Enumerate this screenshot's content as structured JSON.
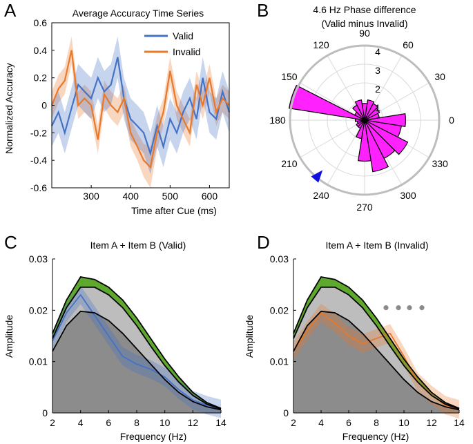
{
  "chart_data": [
    {
      "panel": "A",
      "type": "line",
      "title": "Average Accuracy Time Series",
      "xlabel": "Time after Cue (ms)",
      "ylabel": "Normalized Accuracy",
      "xlim": [
        200,
        650
      ],
      "ylim": [
        -0.6,
        0.6
      ],
      "xticks": [
        300,
        400,
        500,
        600
      ],
      "yticks": [
        -0.6,
        -0.4,
        -0.2,
        0,
        0.2,
        0.4,
        0.6
      ],
      "ytick_labels": [
        "-0.6",
        "-0.4",
        "-0.2",
        "0",
        "0.2",
        "0.4",
        "0.6"
      ],
      "legend_position": "top-right",
      "x": [
        200,
        217,
        233,
        250,
        267,
        283,
        300,
        317,
        333,
        350,
        367,
        383,
        400,
        417,
        433,
        450,
        467,
        483,
        500,
        517,
        533,
        550,
        567,
        583,
        600,
        617,
        633,
        650
      ],
      "series": [
        {
          "name": "Valid",
          "color": "#4472c4",
          "values": [
            -0.15,
            -0.05,
            -0.2,
            -0.02,
            0.15,
            0.1,
            0.05,
            0.2,
            0.1,
            0.15,
            0.35,
            0.05,
            -0.1,
            -0.15,
            -0.2,
            -0.35,
            -0.15,
            -0.3,
            -0.1,
            -0.2,
            -0.05,
            0.05,
            -0.1,
            0.2,
            -0.05,
            -0.1,
            0.1,
            -0.05
          ],
          "band": [
            0.15,
            0.15,
            0.15,
            0.15,
            0.15,
            0.15,
            0.15,
            0.15,
            0.15,
            0.15,
            0.15,
            0.15,
            0.15,
            0.15,
            0.15,
            0.15,
            0.15,
            0.15,
            0.15,
            0.15,
            0.15,
            0.15,
            0.15,
            0.15,
            0.15,
            0.15,
            0.15,
            0.15
          ]
        },
        {
          "name": "Invalid",
          "color": "#e8782a",
          "values": [
            0,
            0.12,
            0.18,
            0.4,
            0,
            0.05,
            0,
            -0.25,
            0.08,
            0,
            -0.05,
            0.05,
            -0.2,
            -0.3,
            -0.4,
            -0.45,
            -0.2,
            -0.05,
            0.25,
            0,
            -0.1,
            -0.2,
            0.15,
            0,
            0.2,
            -0.05,
            0.05,
            0
          ],
          "band": [
            0.1,
            0.1,
            0.1,
            0.1,
            0.1,
            0.1,
            0.1,
            0.1,
            0.1,
            0.1,
            0.1,
            0.1,
            0.1,
            0.1,
            0.12,
            0.15,
            0.12,
            0.1,
            0.1,
            0.1,
            0.1,
            0.1,
            0.1,
            0.1,
            0.1,
            0.1,
            0.1,
            0.1
          ]
        }
      ]
    },
    {
      "panel": "B",
      "type": "polar-histogram",
      "title_line1": "4.6 Hz Phase difference",
      "title_line2": "(Valid minus Invalid)",
      "rlim": [
        0,
        4
      ],
      "rticks": [
        1,
        2,
        3,
        4
      ],
      "angle_ticks_deg": [
        0,
        30,
        60,
        90,
        120,
        150,
        180,
        210,
        240,
        270,
        300,
        330
      ],
      "bar_color": "#ff22ff",
      "bins": [
        {
          "center_deg": 0,
          "count": 2.2
        },
        {
          "center_deg": 18,
          "count": 0.8
        },
        {
          "center_deg": 36,
          "count": 0.9
        },
        {
          "center_deg": 54,
          "count": 1.0
        },
        {
          "center_deg": 72,
          "count": 1.1
        },
        {
          "center_deg": 90,
          "count": 0.9
        },
        {
          "center_deg": 108,
          "count": 1.1
        },
        {
          "center_deg": 126,
          "count": 0.9
        },
        {
          "center_deg": 144,
          "count": 0.6
        },
        {
          "center_deg": 162,
          "count": 4.1
        },
        {
          "center_deg": 180,
          "count": 0.5
        },
        {
          "center_deg": 198,
          "count": 0.4
        },
        {
          "center_deg": 216,
          "count": 0.5
        },
        {
          "center_deg": 234,
          "count": 0.5
        },
        {
          "center_deg": 252,
          "count": 1.0
        },
        {
          "center_deg": 270,
          "count": 2.2
        },
        {
          "center_deg": 288,
          "count": 2.8
        },
        {
          "center_deg": 306,
          "count": 2.3
        },
        {
          "center_deg": 324,
          "count": 2.6
        },
        {
          "center_deg": 342,
          "count": 2.0
        }
      ],
      "marker": {
        "angle_deg": 230,
        "color": "#1010e0"
      }
    },
    {
      "panel": "C",
      "type": "area",
      "title": "Item A + Item B (Valid)",
      "xlabel": "Frequency (Hz)",
      "ylabel": "Amplitude",
      "xlim": [
        2,
        14
      ],
      "ylim": [
        0,
        0.03
      ],
      "xticks": [
        2,
        4,
        6,
        8,
        10,
        12,
        14
      ],
      "yticks": [
        0,
        0.01,
        0.02,
        0.03
      ],
      "ytick_labels": [
        "0",
        "0.01",
        "0.02",
        "0.03"
      ],
      "x": [
        2,
        3,
        4,
        5,
        6,
        7,
        8,
        9,
        10,
        11,
        12,
        13,
        14
      ],
      "surrogate_mean": [
        0.012,
        0.017,
        0.0198,
        0.0195,
        0.018,
        0.0155,
        0.0125,
        0.0095,
        0.0065,
        0.004,
        0.0022,
        0.0012,
        0.0006
      ],
      "surrogate_95": [
        0.0145,
        0.0205,
        0.0245,
        0.0245,
        0.023,
        0.0205,
        0.017,
        0.013,
        0.0092,
        0.006,
        0.0034,
        0.0017,
        0.0008
      ],
      "surrogate_99": [
        0.0155,
        0.022,
        0.0265,
        0.026,
        0.0245,
        0.022,
        0.0185,
        0.0145,
        0.0105,
        0.007,
        0.004,
        0.002,
        0.0009
      ],
      "series": {
        "name": "Valid",
        "color": "#4472c4",
        "values": [
          0.014,
          0.0195,
          0.023,
          0.019,
          0.015,
          0.011,
          0.0095,
          0.0085,
          0.007,
          0.0045,
          0.0025,
          0.0015,
          0.0008
        ]
      },
      "significance_markers": []
    },
    {
      "panel": "D",
      "type": "area",
      "title": "Item A + Item B (Invalid)",
      "xlabel": "Frequency (Hz)",
      "ylabel": "Amplitude",
      "xlim": [
        2,
        14
      ],
      "ylim": [
        0,
        0.03
      ],
      "xticks": [
        2,
        4,
        6,
        8,
        10,
        12,
        14
      ],
      "yticks": [
        0,
        0.01,
        0.02,
        0.03
      ],
      "ytick_labels": [
        "0",
        "0.01",
        "0.02",
        "0.03"
      ],
      "x": [
        2,
        3,
        4,
        5,
        6,
        7,
        8,
        9,
        10,
        11,
        12,
        13,
        14
      ],
      "surrogate_mean": [
        0.012,
        0.017,
        0.0198,
        0.0195,
        0.018,
        0.0155,
        0.0125,
        0.0095,
        0.0065,
        0.004,
        0.0022,
        0.0012,
        0.0006
      ],
      "surrogate_95": [
        0.0145,
        0.0205,
        0.0245,
        0.0245,
        0.023,
        0.0205,
        0.017,
        0.013,
        0.0092,
        0.006,
        0.0034,
        0.0017,
        0.0008
      ],
      "surrogate_99": [
        0.0155,
        0.022,
        0.0265,
        0.026,
        0.0245,
        0.022,
        0.0185,
        0.0145,
        0.0105,
        0.007,
        0.004,
        0.002,
        0.0009
      ],
      "series": {
        "name": "Invalid",
        "color": "#e8782a",
        "values": [
          0.012,
          0.016,
          0.0195,
          0.0175,
          0.015,
          0.0135,
          0.0145,
          0.0155,
          0.011,
          0.006,
          0.0035,
          0.0015,
          0.0007
        ]
      },
      "significance_markers": [
        8.7,
        9.6,
        10.4,
        11.3
      ],
      "significance_level": 0.0205
    }
  ]
}
